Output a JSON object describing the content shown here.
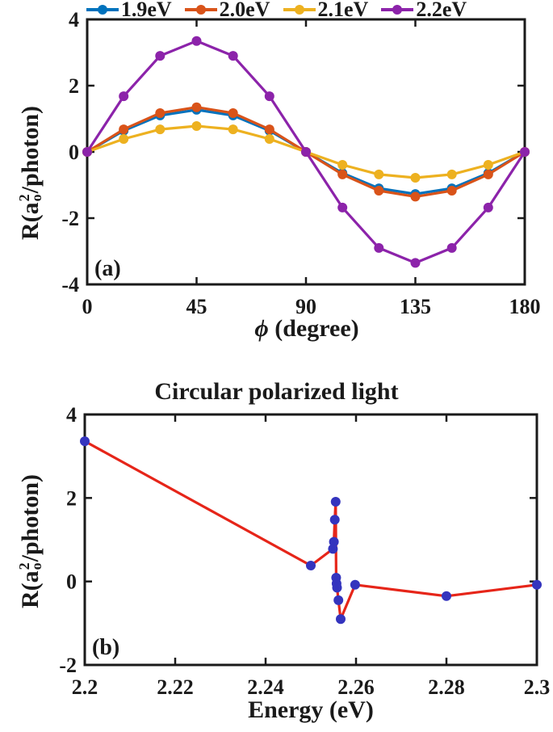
{
  "colors": {
    "axis": "#1a1a1a",
    "background": "#ffffff",
    "series_blue": "#0072BD",
    "series_orange": "#D95319",
    "series_yellow": "#EDB120",
    "series_purple": "#8C23AA",
    "panel_b_line": "#E62519",
    "panel_b_marker": "#3434BE"
  },
  "panel_a": {
    "label": "(a)",
    "xlabel_symbol": "ϕ",
    "xlabel_rest": " (degree)",
    "ylabel_prefix": "R(a",
    "ylabel_sup": "2",
    "ylabel_sub": "o",
    "ylabel_suffix": "/photon)"
  },
  "panel_b": {
    "label": "(b)",
    "title": "Circular polarized light",
    "xlabel": "Energy (eV)",
    "ylabel_prefix": "R(a",
    "ylabel_sup": "2",
    "ylabel_sub": "o",
    "ylabel_suffix": "/photon)"
  },
  "chart_data": [
    {
      "type": "line",
      "panel": "a",
      "title": "",
      "xlabel": "ϕ (degree)",
      "ylabel": "R(a_o^2/photon)",
      "xlim": [
        0,
        180
      ],
      "ylim": [
        -4,
        4
      ],
      "xticks": [
        0,
        45,
        90,
        135,
        180
      ],
      "yticks": [
        -4,
        -2,
        0,
        2,
        4
      ],
      "grid": false,
      "legend_position": "top",
      "x": [
        0,
        15,
        30,
        45,
        60,
        75,
        90,
        105,
        120,
        135,
        150,
        165,
        180
      ],
      "series": [
        {
          "name": "1.9eV",
          "color": "#0072BD",
          "values": [
            0,
            0.64,
            1.1,
            1.27,
            1.1,
            0.64,
            0,
            -0.64,
            -1.1,
            -1.27,
            -1.1,
            -0.64,
            0
          ]
        },
        {
          "name": "2.0eV",
          "color": "#D95319",
          "values": [
            0,
            0.68,
            1.17,
            1.35,
            1.17,
            0.68,
            0,
            -0.68,
            -1.17,
            -1.35,
            -1.17,
            -0.68,
            0
          ]
        },
        {
          "name": "2.1eV",
          "color": "#EDB120",
          "values": [
            0,
            0.39,
            0.68,
            0.78,
            0.68,
            0.39,
            0,
            -0.39,
            -0.68,
            -0.78,
            -0.68,
            -0.39,
            0
          ]
        },
        {
          "name": "2.2eV",
          "color": "#8C23AA",
          "values": [
            0,
            1.68,
            2.9,
            3.35,
            2.9,
            1.68,
            0,
            -1.68,
            -2.9,
            -3.35,
            -2.9,
            -1.68,
            0
          ]
        }
      ]
    },
    {
      "type": "line",
      "panel": "b",
      "title": "Circular polarized light",
      "xlabel": "Energy (eV)",
      "ylabel": "R(a_o^2/photon)",
      "xlim": [
        2.2,
        2.3
      ],
      "ylim": [
        -2,
        4
      ],
      "xticks": [
        2.2,
        2.22,
        2.24,
        2.26,
        2.28,
        2.3
      ],
      "yticks": [
        -2,
        0,
        2,
        4
      ],
      "grid": false,
      "series": [
        {
          "name": "circular polarized light",
          "line_color": "#E62519",
          "marker_color": "#3434BE",
          "x": [
            2.2,
            2.25,
            2.2549,
            2.2551,
            2.2553,
            2.2555,
            2.2556,
            2.2557,
            2.2558,
            2.2561,
            2.2566,
            2.2598,
            2.28,
            2.3
          ],
          "y": [
            3.36,
            0.38,
            0.78,
            0.95,
            1.48,
            1.91,
            0.09,
            -0.05,
            -0.15,
            -0.45,
            -0.9,
            -0.08,
            -0.35,
            -0.08
          ]
        }
      ]
    }
  ]
}
